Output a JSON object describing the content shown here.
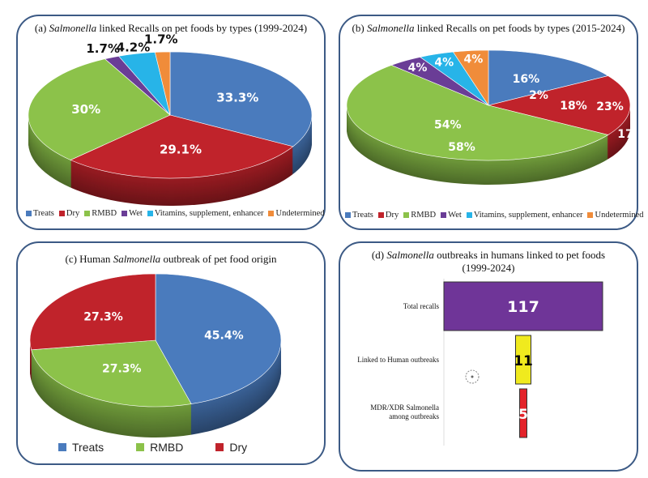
{
  "colors": {
    "Treats": "#4a7bbd",
    "Dry": "#c0232b",
    "RMBD": "#8cc24a",
    "Wet": "#6a3d96",
    "Vitamins, supplement, enhancer": "#27b4e8",
    "Undetermined": "#f08c3a"
  },
  "chart_data": [
    {
      "panel": "(a)",
      "type": "pie",
      "title_prefix": "(a)",
      "title_italic": "Salmonella",
      "title_rest": "linked Recalls on pet foods by types (1999-2024)",
      "categories": [
        "Treats",
        "Dry",
        "RMBD",
        "Wet",
        "Vitamins, supplement, enhancer",
        "Undetermined"
      ],
      "values": [
        33.3,
        29.1,
        30,
        1.7,
        4.2,
        1.7
      ],
      "labels": [
        "33.3%",
        "29.1%",
        "30%",
        "1.7%",
        "4.2%",
        "1.7%"
      ],
      "legend": "bottom"
    },
    {
      "panel": "(b)",
      "type": "pie",
      "title_prefix": "(b)",
      "title_italic": "Salmonella",
      "title_rest": "linked Recalls on pet foods by types (2015-2024)",
      "categories": [
        "Treats",
        "Dry",
        "RMBD",
        "Wet",
        "Vitamins, supplement, enhancer",
        "Undetermined"
      ],
      "values": [
        16,
        18,
        54,
        4,
        4,
        4
      ],
      "labels": [
        "16%",
        "18%",
        "54%",
        "4%",
        "4%",
        "4%"
      ],
      "annotations": [
        "2%",
        "23%",
        "58%",
        "17"
      ],
      "legend": "bottom"
    },
    {
      "panel": "(c)",
      "type": "pie",
      "title_prefix": "(c) Human",
      "title_italic": "Salmonella",
      "title_rest": "outbreak of pet food origin",
      "categories": [
        "Treats",
        "RMBD",
        "Dry"
      ],
      "values": [
        45.4,
        27.3,
        27.3
      ],
      "labels": [
        "45.4%",
        "27.3%",
        "27.3%"
      ],
      "legend": "bottom"
    },
    {
      "panel": "(d)",
      "type": "bar",
      "orientation": "horizontal-centered",
      "title_prefix": "(d)",
      "title_italic": "Salmonella",
      "title_rest": "outbreaks in humans linked to pet foods (1999-2024)",
      "categories": [
        "Total recalls",
        "Linked to Human outbreaks",
        "MDR/XDR Salmonella among outbreaks"
      ],
      "values": [
        117,
        11,
        5
      ],
      "bar_colors": [
        "#6f3598",
        "#f0ea1e",
        "#e3232a"
      ],
      "label_colors": [
        "#ffffff",
        "#000000",
        "#ffffff"
      ]
    }
  ]
}
